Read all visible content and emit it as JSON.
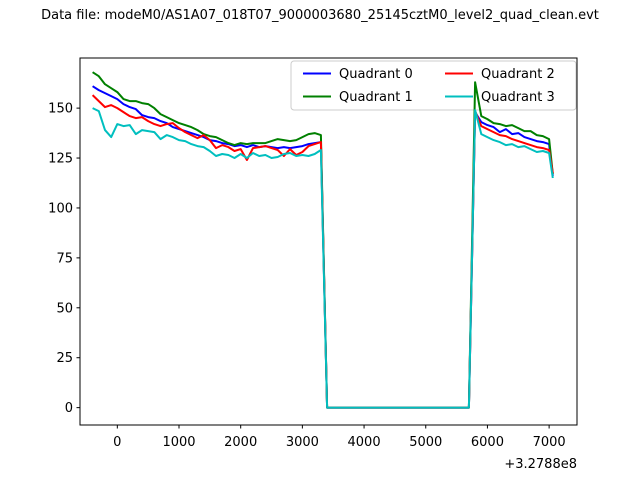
{
  "figure": {
    "title": "Data file: modeM0/AS1A07_018T07_9000003680_25145cztM0_level2_quad_clean.evt",
    "background": "#ffffff",
    "axes_edge_color": "#000000",
    "legend_edge_color": "#cccccc"
  },
  "chart_data": {
    "type": "line",
    "title": "Data file: modeM0/AS1A07_018T07_9000003680_25145cztM0_level2_quad_clean.evt",
    "xlabel": "",
    "ylabel": "",
    "x_offset_label": "+3.2788e8",
    "xlim": [
      -605,
      7452
    ],
    "ylim": [
      -8.7,
      175.1
    ],
    "x_ticks": [
      0,
      1000,
      2000,
      3000,
      4000,
      5000,
      6000,
      7000
    ],
    "y_ticks": [
      0,
      25,
      50,
      75,
      100,
      125,
      150
    ],
    "grid": false,
    "legend": {
      "position": "upper right",
      "columns": 2,
      "entries": [
        "Quadrant 0",
        "Quadrant 1",
        "Quadrant 2",
        "Quadrant 3"
      ]
    },
    "x": [
      -400,
      -300,
      -200,
      -100,
      0,
      100,
      200,
      300,
      400,
      500,
      600,
      700,
      800,
      900,
      1000,
      1100,
      1200,
      1300,
      1400,
      1500,
      1600,
      1700,
      1800,
      1900,
      2000,
      2100,
      2200,
      2300,
      2400,
      2500,
      2600,
      2700,
      2800,
      2900,
      3000,
      3100,
      3200,
      3300,
      3400,
      3500,
      3600,
      3700,
      3800,
      3900,
      4000,
      4100,
      4200,
      4300,
      4400,
      4500,
      4600,
      4700,
      4800,
      4900,
      5000,
      5100,
      5200,
      5300,
      5400,
      5500,
      5600,
      5700,
      5800,
      5900,
      6000,
      6100,
      6200,
      6300,
      6400,
      6500,
      6600,
      6700,
      6800,
      6900,
      7000,
      7060
    ],
    "series": [
      {
        "name": "Quadrant 0",
        "color": "#0000ff",
        "values": [
          161,
          159,
          157.5,
          156,
          154.5,
          152,
          150.5,
          149.5,
          146.5,
          145.5,
          145,
          143.5,
          142.5,
          140.5,
          139.5,
          138.5,
          137.5,
          136.5,
          135.5,
          134,
          133.5,
          132.5,
          132,
          131,
          131.5,
          130.5,
          131.5,
          130.5,
          131,
          130.5,
          130,
          130.5,
          130,
          130.5,
          131,
          132,
          132.5,
          133,
          0,
          0,
          0,
          0,
          0,
          0,
          0,
          0,
          0,
          0,
          0,
          0,
          0,
          0,
          0,
          0,
          0,
          0,
          0,
          0,
          0,
          0,
          0,
          0,
          148,
          143,
          141.5,
          140.5,
          138,
          139.5,
          137,
          137.5,
          135.5,
          134.5,
          133.5,
          133,
          132,
          116
        ]
      },
      {
        "name": "Quadrant 1",
        "color": "#008000",
        "values": [
          168,
          166,
          162,
          160,
          158,
          154.5,
          153.5,
          153.5,
          152.5,
          152,
          150,
          147,
          145.5,
          144,
          142.5,
          141.5,
          140.5,
          139,
          137,
          136,
          135.5,
          134,
          132.5,
          131.5,
          132.5,
          132,
          132.5,
          132.5,
          132.5,
          133.5,
          134.5,
          134,
          133.5,
          134,
          135.5,
          137,
          137.5,
          136.5,
          0,
          0,
          0,
          0,
          0,
          0,
          0,
          0,
          0,
          0,
          0,
          0,
          0,
          0,
          0,
          0,
          0,
          0,
          0,
          0,
          0,
          0,
          0,
          0,
          163,
          146,
          144.5,
          142.5,
          142,
          141,
          141.5,
          140,
          138.5,
          138.5,
          136.5,
          136,
          134.5,
          117
        ]
      },
      {
        "name": "Quadrant 2",
        "color": "#ff0000",
        "values": [
          156.5,
          153.5,
          150.5,
          151.5,
          150,
          148,
          146,
          145,
          145.5,
          143.5,
          142,
          141,
          142,
          142.5,
          140,
          138,
          136.5,
          135,
          136.5,
          134,
          130,
          131.5,
          130.5,
          128.5,
          129.5,
          124,
          130,
          130.5,
          131,
          130,
          129,
          126,
          129.5,
          126.5,
          128,
          131,
          132,
          133,
          0,
          0,
          0,
          0,
          0,
          0,
          0,
          0,
          0,
          0,
          0,
          0,
          0,
          0,
          0,
          0,
          0,
          0,
          0,
          0,
          0,
          0,
          0,
          0,
          148.5,
          141,
          139.5,
          138,
          136.5,
          136,
          134.5,
          133.5,
          132.5,
          131.5,
          130.5,
          130,
          129,
          117.5
        ]
      },
      {
        "name": "Quadrant 3",
        "color": "#00bfbf",
        "values": [
          150,
          148.5,
          139,
          135.5,
          142,
          141,
          141.5,
          137,
          139,
          138.5,
          138,
          134.5,
          136.5,
          135.5,
          134,
          133.5,
          132,
          131,
          130.5,
          128.5,
          126,
          127,
          126.5,
          125,
          127,
          125,
          127.5,
          126,
          126.5,
          125,
          125.5,
          127,
          127.5,
          126,
          126.5,
          126,
          127,
          129,
          0,
          0,
          0,
          0,
          0,
          0,
          0,
          0,
          0,
          0,
          0,
          0,
          0,
          0,
          0,
          0,
          0,
          0,
          0,
          0,
          0,
          0,
          0,
          0,
          149,
          137,
          135.5,
          134,
          133,
          131.5,
          132,
          130.5,
          131,
          129.5,
          128,
          128.5,
          127.5,
          115
        ]
      }
    ]
  }
}
